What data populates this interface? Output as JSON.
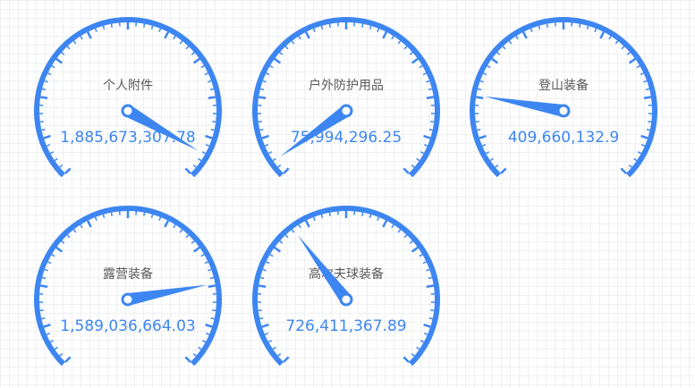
{
  "chart_data": {
    "type": "gauge",
    "colors": {
      "arc": "#3d86f2",
      "pointer_body": "#3d86f2",
      "pointer_cap": "#ffffff",
      "name_text": "#595959",
      "value_text": "#3d86f2"
    },
    "range": [
      0,
      2000000000
    ],
    "start_angle_deg": 225,
    "end_angle_deg": -45,
    "major_ticks": 10,
    "minor_per_major": 5,
    "gauges": [
      {
        "name": "个人附件",
        "value": 1885673307.78,
        "value_label": "1,885,673,307.78"
      },
      {
        "name": "户外防护用品",
        "value": 75994296.25,
        "value_label": "75,994,296.25"
      },
      {
        "name": "登山装备",
        "value": 409660132.9,
        "value_label": "409,660,132.9"
      },
      {
        "name": "露营装备",
        "value": 1589036664.03,
        "value_label": "1,589,036,664.03"
      },
      {
        "name": "高尔夫球装备",
        "value": 726411367.89,
        "value_label": "726,411,367.89"
      }
    ]
  }
}
